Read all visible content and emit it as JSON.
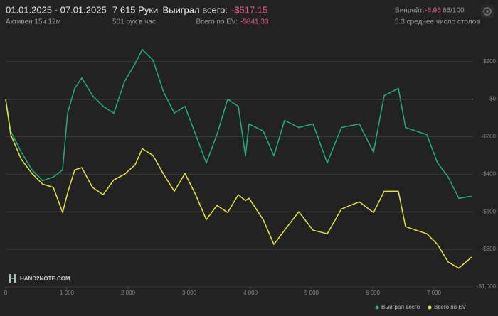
{
  "header": {
    "date_range": "01.01.2025 - 07.01.2025",
    "active": "Активен 15ч 12м",
    "hands": "7 615 Руки",
    "hands_per_hour": "501 рук в час",
    "won_label": "Выиграл всего:",
    "won_value": "-$517.15",
    "ev_label": "Всего по EV:",
    "ev_value": "-$841.33",
    "winrate_label": "Винрейт:",
    "winrate_value": "-6.96",
    "winrate_unit": "66/100",
    "tables": "5.3 среднее число столов",
    "logo": "HAND2NOTE.COM"
  },
  "chart_data": {
    "type": "line",
    "x": [
      0,
      81,
      256,
      430,
      605,
      779,
      930,
      1012,
      1128,
      1244,
      1419,
      1593,
      1767,
      1942,
      2116,
      2233,
      2407,
      2581,
      2756,
      2930,
      3105,
      3279,
      3453,
      3628,
      3802,
      3919,
      3977,
      4209,
      4384,
      4558,
      4791,
      5023,
      5256,
      5488,
      5779,
      6012,
      6186,
      6419,
      6535,
      6709,
      6884,
      7058,
      7233,
      7407,
      7615
    ],
    "series": [
      {
        "name": "Выиграл всего",
        "color": "#1fb07a",
        "values": [
          0,
          -170,
          -283,
          -377,
          -434,
          -415,
          -377,
          -75,
          57,
          113,
          19,
          -38,
          -75,
          94,
          189,
          264,
          208,
          38,
          -75,
          -38,
          -189,
          -340,
          -189,
          0,
          -38,
          -302,
          -132,
          -170,
          -302,
          -113,
          -151,
          -132,
          -340,
          -151,
          -132,
          -283,
          19,
          57,
          -151,
          -170,
          -189,
          -340,
          -415,
          -528,
          -517.15
        ]
      },
      {
        "name": "Всего по EV",
        "color": "#e6e63a",
        "values": [
          0,
          -189,
          -321,
          -396,
          -453,
          -470,
          -604,
          -500,
          -377,
          -365,
          -470,
          -509,
          -430,
          -400,
          -350,
          -264,
          -300,
          -400,
          -491,
          -396,
          -509,
          -642,
          -566,
          -604,
          -509,
          -540,
          -528,
          -642,
          -774,
          -698,
          -600,
          -698,
          -717,
          -585,
          -547,
          -604,
          -491,
          -491,
          -679,
          -698,
          -717,
          -774,
          -868,
          -900,
          -841.33
        ]
      }
    ],
    "xlim": [
      0,
      7640
    ],
    "ylim": [
      -1000,
      320
    ],
    "xticks": [
      0,
      {
        "value": 1000,
        "label": "1 000"
      },
      {
        "value": 2000,
        "label": "2 000"
      },
      {
        "value": 3000,
        "label": "3 000"
      },
      {
        "value": 4000,
        "label": "4 000"
      },
      {
        "value": 5000,
        "label": "5 000"
      },
      {
        "value": 6000,
        "label": "6 000"
      },
      {
        "value": 7000,
        "label": "7 000"
      }
    ],
    "yticks": [
      {
        "value": 200,
        "label": "$200"
      },
      {
        "value": 0,
        "label": "$0"
      },
      {
        "value": -200,
        "label": "-$200"
      },
      {
        "value": -400,
        "label": "-$400"
      },
      {
        "value": -600,
        "label": "-$600"
      },
      {
        "value": -800,
        "label": "-$800"
      },
      {
        "value": -1000,
        "label": "-$1,000"
      }
    ],
    "grid": true
  }
}
